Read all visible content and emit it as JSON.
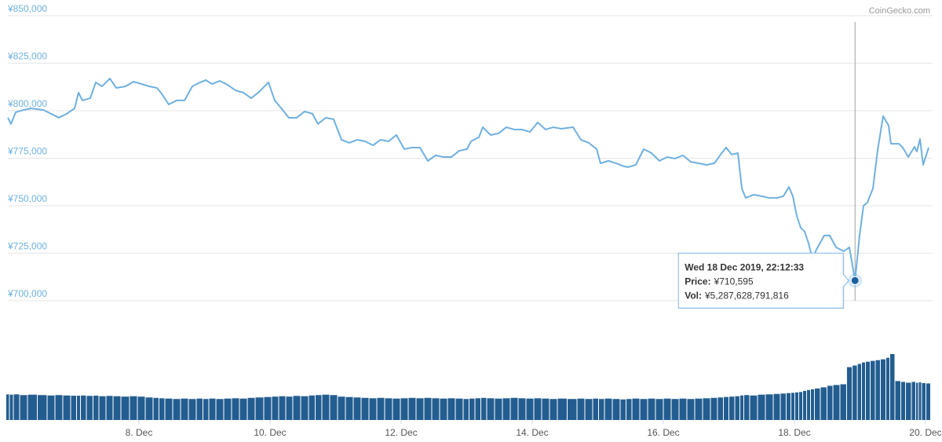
{
  "chart_data": {
    "type": "line",
    "watermark": "CoinGecko.com",
    "x": [
      6,
      6.048,
      6.12,
      6.24,
      6.359,
      6.539,
      6.659,
      6.778,
      6.898,
      7.018,
      7.078,
      7.138,
      7.257,
      7.341,
      7.437,
      7.557,
      7.653,
      7.796,
      7.916,
      8.036,
      8.156,
      8.275,
      8.335,
      8.455,
      8.575,
      8.695,
      8.814,
      8.934,
      9.018,
      9.114,
      9.234,
      9.353,
      9.473,
      9.593,
      9.713,
      9.832,
      9.976,
      10.072,
      10.192,
      10.287,
      10.407,
      10.527,
      10.647,
      10.731,
      10.85,
      10.97,
      11.09,
      11.21,
      11.329,
      11.449,
      11.569,
      11.689,
      11.808,
      11.928,
      12.048,
      12.168,
      12.287,
      12.407,
      12.527,
      12.647,
      12.766,
      12.886,
      13.006,
      13.066,
      13.186,
      13.246,
      13.365,
      13.485,
      13.605,
      13.725,
      13.844,
      13.964,
      14.084,
      14.204,
      14.323,
      14.443,
      14.623,
      14.743,
      14.862,
      14.982,
      15.042,
      15.162,
      15.281,
      15.401,
      15.461,
      15.581,
      15.701,
      15.82,
      15.94,
      16.06,
      16.18,
      16.299,
      16.419,
      16.539,
      16.659,
      16.778,
      16.874,
      16.958,
      17.042,
      17.138,
      17.198,
      17.257,
      17.377,
      17.497,
      17.617,
      17.737,
      17.832,
      17.916,
      17.976,
      18.036,
      18.096,
      18.156,
      18.216,
      18.275,
      18.335,
      18.455,
      18.539,
      18.635,
      18.754,
      18.838,
      18.925,
      18.994,
      19.054,
      19.114,
      19.198,
      19.269,
      19.353,
      19.437,
      19.473,
      19.593,
      19.653,
      19.737,
      19.832,
      19.868,
      19.916,
      19.964,
      20.048
    ],
    "series": [
      {
        "color": "#6fb0e0",
        "values": [
          796300,
          793000,
          799200,
          800400,
          801200,
          800400,
          798400,
          796300,
          798400,
          801200,
          809500,
          805400,
          806600,
          814900,
          812800,
          816900,
          812000,
          812800,
          815300,
          814100,
          812800,
          812000,
          809500,
          803300,
          805400,
          805400,
          812800,
          814900,
          816100,
          814100,
          815700,
          813600,
          810700,
          809500,
          806600,
          809900,
          814900,
          805400,
          800400,
          796300,
          796300,
          799600,
          798400,
          793000,
          796300,
          795500,
          784700,
          783100,
          784700,
          783900,
          781800,
          784700,
          783900,
          787200,
          779800,
          780600,
          780600,
          773600,
          776500,
          775600,
          775600,
          778900,
          779800,
          783900,
          786000,
          791300,
          787200,
          788000,
          791300,
          790100,
          790100,
          788800,
          793800,
          790100,
          791300,
          790500,
          791300,
          784700,
          783100,
          779800,
          772300,
          773600,
          772300,
          770700,
          770300,
          771500,
          779800,
          777700,
          773600,
          775600,
          774800,
          776500,
          773100,
          772300,
          771500,
          772300,
          776900,
          780600,
          776900,
          777700,
          759100,
          754100,
          755800,
          755000,
          754100,
          754100,
          755000,
          759900,
          755000,
          744600,
          738400,
          736400,
          730200,
          721900,
          726900,
          734300,
          734300,
          728100,
          726000,
          728100,
          710595,
          734300,
          750000,
          751700,
          759100,
          778900,
          797100,
          792200,
          782600,
          782600,
          780600,
          775600,
          781000,
          778500,
          785100,
          771500,
          780600
        ]
      }
    ],
    "volume": {
      "color": "#235d90",
      "values": [
        2490000000000.0,
        2460000000000.0,
        2490000000000.0,
        2420000000000.0,
        2460000000000.0,
        2420000000000.0,
        2380000000000.0,
        2420000000000.0,
        2380000000000.0,
        2360000000000.0,
        2360000000000.0,
        2380000000000.0,
        2340000000000.0,
        2360000000000.0,
        2310000000000.0,
        2340000000000.0,
        2310000000000.0,
        2270000000000.0,
        2310000000000.0,
        2270000000000.0,
        2190000000000.0,
        2150000000000.0,
        2110000000000.0,
        2080000000000.0,
        2040000000000.0,
        2080000000000.0,
        2040000000000.0,
        2080000000000.0,
        2040000000000.0,
        2080000000000.0,
        2040000000000.0,
        2080000000000.0,
        2110000000000.0,
        2080000000000.0,
        2150000000000.0,
        2190000000000.0,
        2230000000000.0,
        2270000000000.0,
        2310000000000.0,
        2270000000000.0,
        2340000000000.0,
        2310000000000.0,
        2380000000000.0,
        2420000000000.0,
        2460000000000.0,
        2420000000000.0,
        2270000000000.0,
        2230000000000.0,
        2190000000000.0,
        2150000000000.0,
        2110000000000.0,
        2150000000000.0,
        2110000000000.0,
        2080000000000.0,
        2110000000000.0,
        2150000000000.0,
        2110000000000.0,
        2150000000000.0,
        2110000000000.0,
        2080000000000.0,
        2110000000000.0,
        2080000000000.0,
        2040000000000.0,
        2080000000000.0,
        2110000000000.0,
        2150000000000.0,
        2110000000000.0,
        2080000000000.0,
        2110000000000.0,
        2150000000000.0,
        2110000000000.0,
        2080000000000.0,
        2110000000000.0,
        2080000000000.0,
        2040000000000.0,
        2080000000000.0,
        2040000000000.0,
        2080000000000.0,
        2040000000000.0,
        2080000000000.0,
        2040000000000.0,
        2080000000000.0,
        2040000000000.0,
        2000000000000.0,
        2040000000000.0,
        2080000000000.0,
        2040000000000.0,
        2080000000000.0,
        2040000000000.0,
        2080000000000.0,
        2040000000000.0,
        2080000000000.0,
        2040000000000.0,
        2080000000000.0,
        2110000000000.0,
        2150000000000.0,
        2190000000000.0,
        2230000000000.0,
        2270000000000.0,
        2310000000000.0,
        2380000000000.0,
        2420000000000.0,
        2380000000000.0,
        2460000000000.0,
        2490000000000.0,
        2530000000000.0,
        2570000000000.0,
        2610000000000.0,
        2640000000000.0,
        2680000000000.0,
        2720000000000.0,
        2830000000000.0,
        2910000000000.0,
        2980000000000.0,
        3060000000000.0,
        3170000000000.0,
        3320000000000.0,
        3400000000000.0,
        3470000000000.0,
        5130000000000.0,
        5287628791816,
        5440000000000.0,
        5590000000000.0,
        5660000000000.0,
        5740000000000.0,
        5810000000000.0,
        5890000000000.0,
        6040000000000.0,
        6400000000000.0,
        3780000000000.0,
        3700000000000.0,
        3620000000000.0,
        3700000000000.0,
        3620000000000.0,
        3660000000000.0,
        3580000000000.0,
        3550000000000.0
      ]
    },
    "xlim": [
      6,
      20.048
    ],
    "xticks": [
      {
        "value": 8,
        "label": "8. Dec"
      },
      {
        "value": 10,
        "label": "10. Dec"
      },
      {
        "value": 12,
        "label": "12. Dec"
      },
      {
        "value": 14,
        "label": "14. Dec"
      },
      {
        "value": 16,
        "label": "16. Dec"
      },
      {
        "value": 18,
        "label": "18. Dec"
      },
      {
        "value": 20,
        "label": "20. Dec"
      }
    ],
    "ylim": [
      700000,
      850000
    ],
    "yticks": [
      {
        "value": 700000,
        "label": "¥700,000"
      },
      {
        "value": 725000,
        "label": "¥725,000"
      },
      {
        "value": 750000,
        "label": "¥750,000"
      },
      {
        "value": 775000,
        "label": "¥775,000"
      },
      {
        "value": 800000,
        "label": "¥800,000"
      },
      {
        "value": 825000,
        "label": "¥825,000"
      },
      {
        "value": 850000,
        "label": "¥850,000"
      }
    ],
    "grid": true,
    "tooltip": {
      "x": 18.925,
      "title": "Wed 18 Dec 2019, 22:12:33",
      "price_label": "Price:",
      "price": "¥710,595",
      "vol_label": "Vol:",
      "vol": "¥5,287,628,791,816"
    }
  }
}
